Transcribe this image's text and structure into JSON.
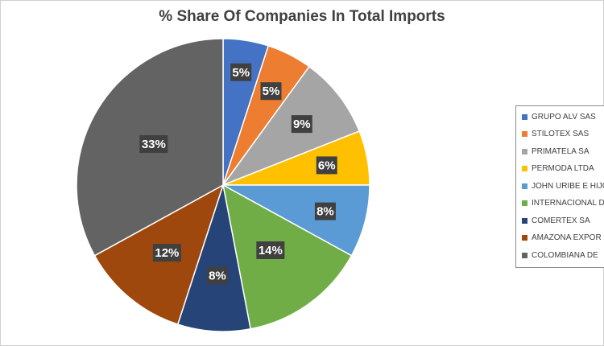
{
  "chart_data": {
    "type": "pie",
    "title": "% Share Of Companies In Total Imports",
    "legend_position": "right",
    "slices": [
      {
        "name": "GRUPO ALV SAS",
        "value": 5,
        "label": "5%",
        "color": "#4472C4"
      },
      {
        "name": "STILOTEX SAS",
        "value": 5,
        "label": "5%",
        "color": "#ED7D31"
      },
      {
        "name": "PRIMATELA SA",
        "value": 9,
        "label": "9%",
        "color": "#A5A5A5"
      },
      {
        "name": "PERMODA LTDA",
        "value": 6,
        "label": "6%",
        "color": "#FFC000"
      },
      {
        "name": "JOHN URIBE E HIJO",
        "value": 8,
        "label": "8%",
        "color": "#5B9BD5"
      },
      {
        "name": "INTERNACIONAL D",
        "value": 14,
        "label": "14%",
        "color": "#70AD47"
      },
      {
        "name": "COMERTEX SA",
        "value": 8,
        "label": "8%",
        "color": "#264478"
      },
      {
        "name": "AMAZONA EXPOR",
        "value": 12,
        "label": "12%",
        "color": "#9E480E"
      },
      {
        "name": "COLOMBIANA DE",
        "value": 33,
        "label": "33%",
        "color": "#636363"
      }
    ]
  }
}
